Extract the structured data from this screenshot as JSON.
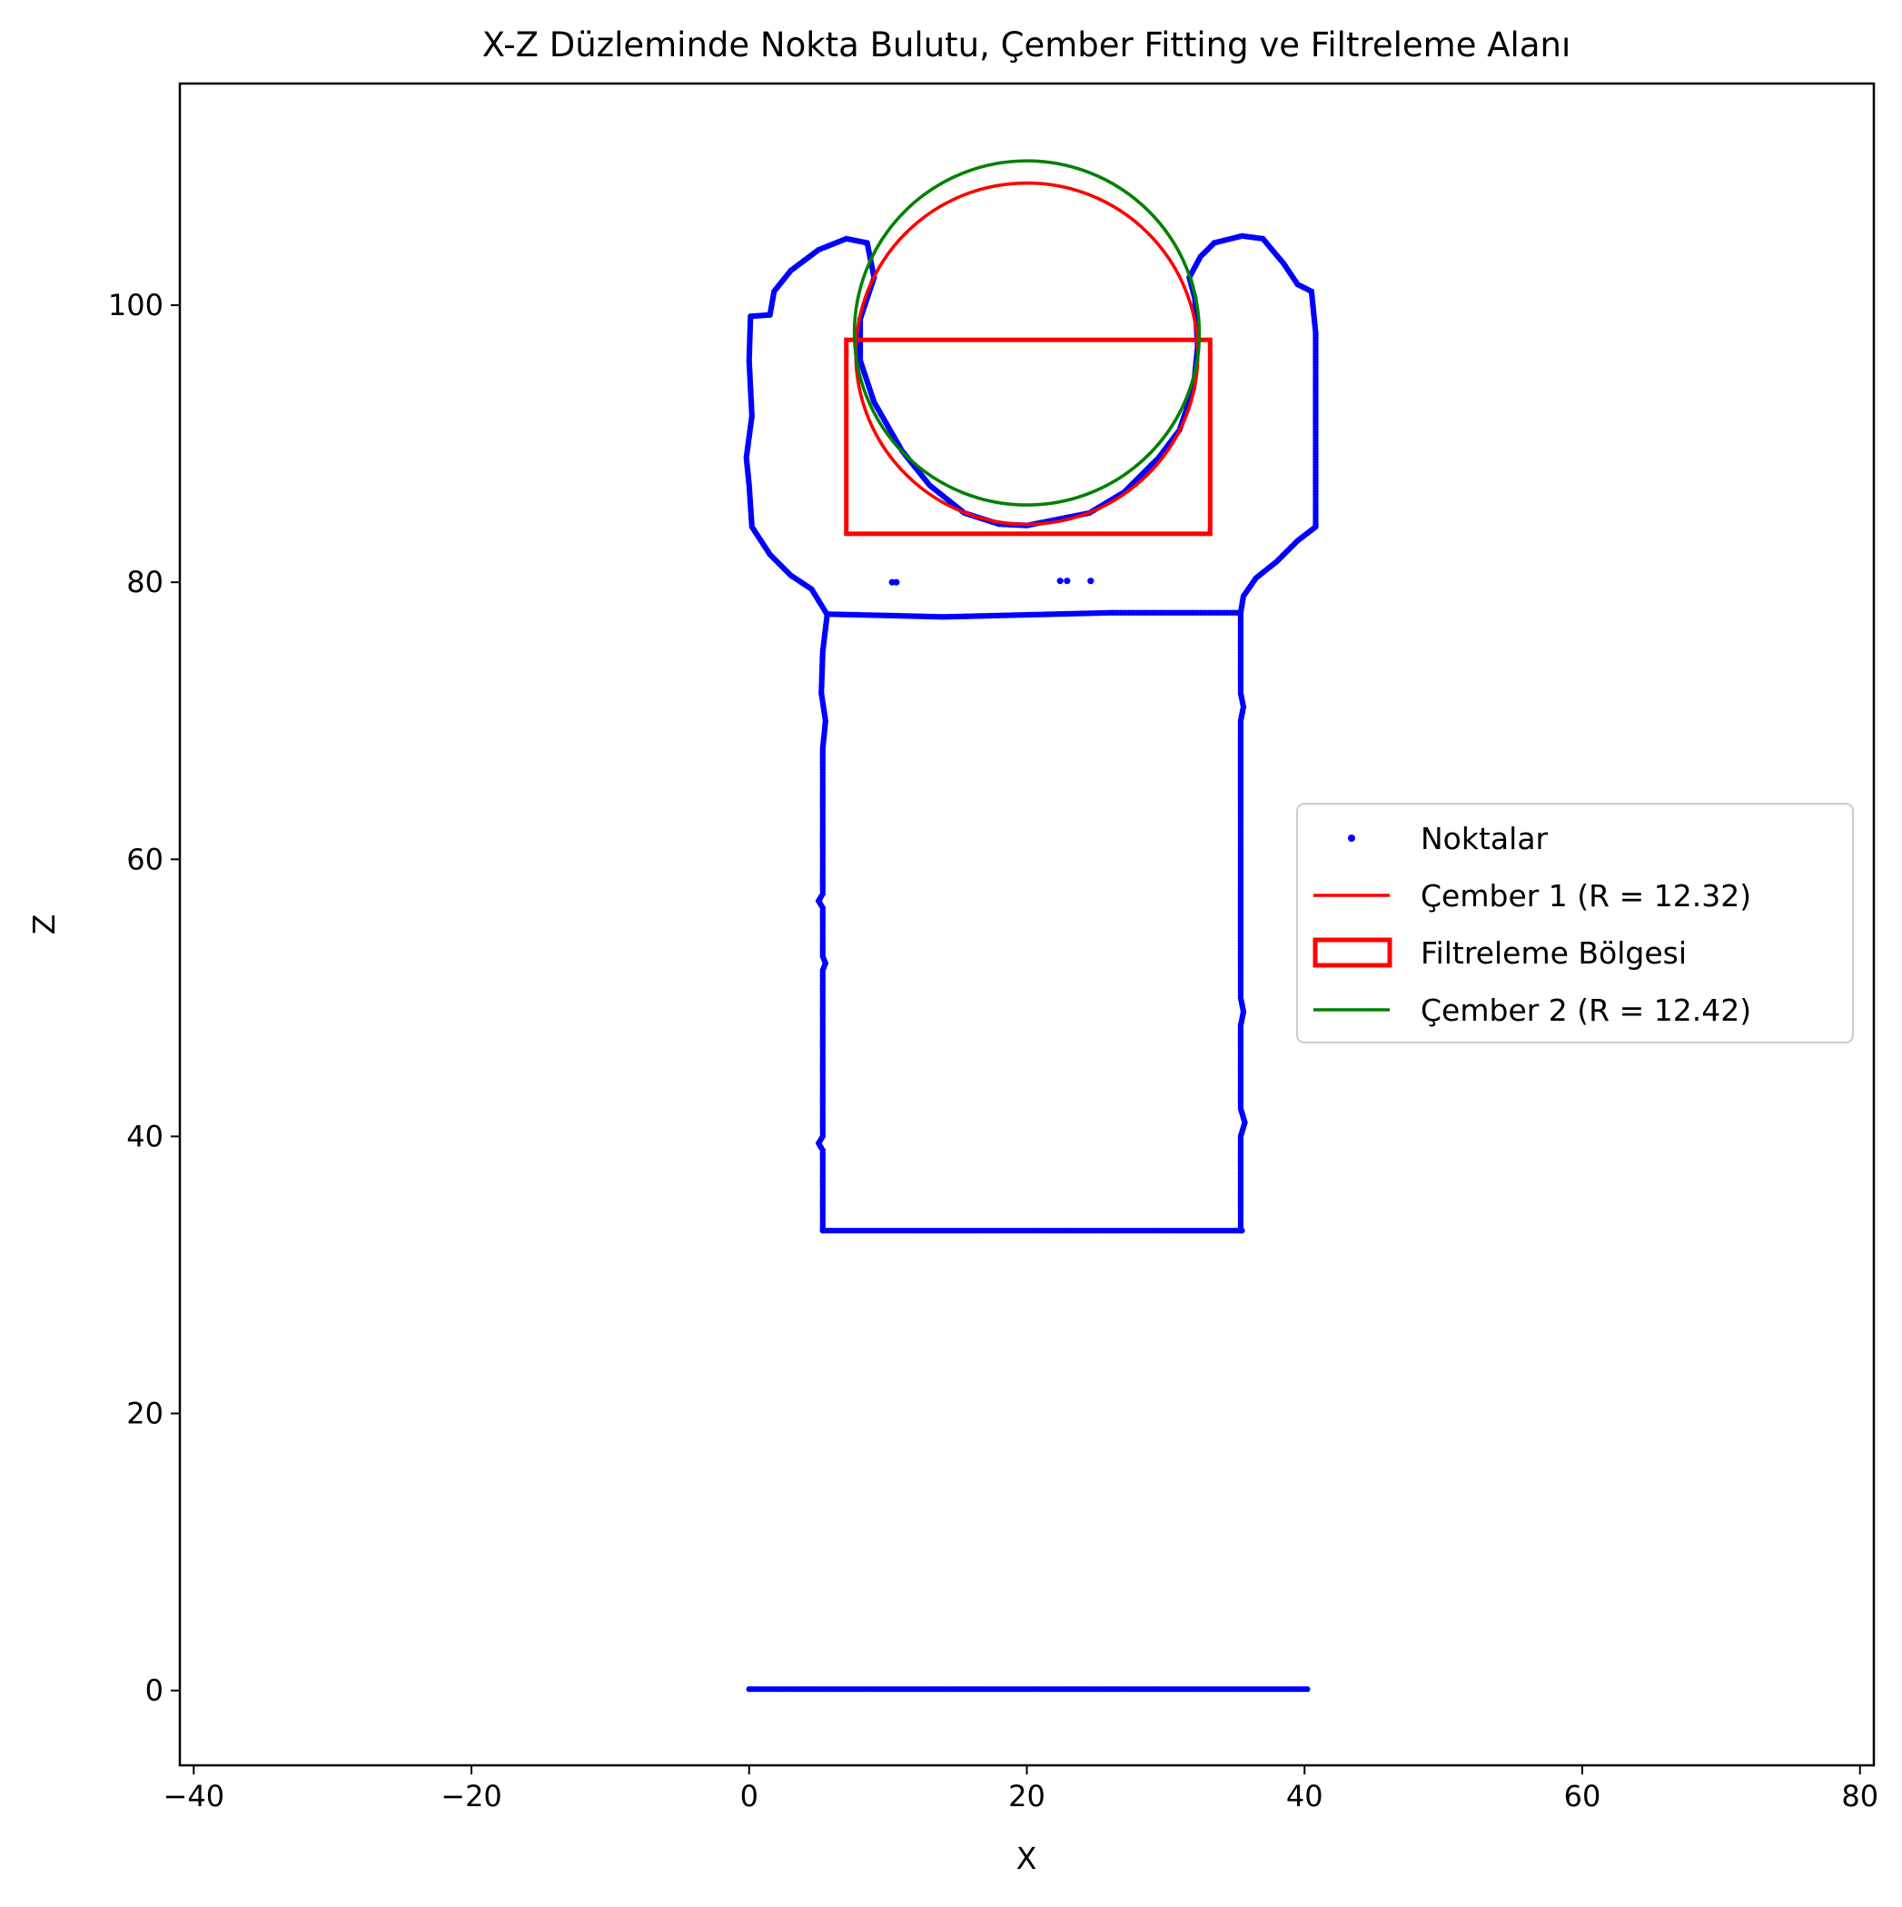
{
  "chart_data": {
    "type": "scatter",
    "title": "X-Z Düzleminde Nokta Bulutu, Çember Fitting ve Filtreleme Alanı",
    "xlabel": "X",
    "ylabel": "Z",
    "xlim": [
      -41,
      81
    ],
    "ylim": [
      -5.4,
      116
    ],
    "xticks": [
      -40,
      -20,
      0,
      20,
      40,
      60,
      80
    ],
    "yticks": [
      0,
      20,
      40,
      60,
      80,
      100
    ],
    "xtick_labels": [
      "−40",
      "−20",
      "0",
      "20",
      "40",
      "60",
      "80"
    ],
    "ytick_labels": [
      "0",
      "20",
      "40",
      "60",
      "80",
      "100"
    ],
    "grid": false,
    "legend_position": "center-right",
    "legend": [
      {
        "label": "Noktalar",
        "kind": "marker",
        "color": "#0000ff"
      },
      {
        "label": "Çember 1 (R = 12.32)",
        "kind": "line",
        "color": "#ff0000"
      },
      {
        "label": "Filtreleme Bölgesi",
        "kind": "patch",
        "color": "#ff0000"
      },
      {
        "label": "Çember 2 (R = 12.42)",
        "kind": "line",
        "color": "#008000"
      }
    ],
    "series": [
      {
        "name": "Noktalar",
        "kind": "points",
        "color": "#0000ff",
        "polylines": [
          [
            [
              0,
              0.1
            ],
            [
              10,
              0.1
            ],
            [
              20,
              0.1
            ],
            [
              30,
              0.1
            ],
            [
              40.2,
              0.1
            ]
          ],
          [
            [
              5.3,
              33.2
            ],
            [
              35.5,
              33.2
            ]
          ],
          [
            [
              5.3,
              33.2
            ],
            [
              5.3,
              39
            ],
            [
              5.0,
              39.5
            ],
            [
              5.3,
              40
            ],
            [
              5.3,
              52
            ],
            [
              5.5,
              52.5
            ],
            [
              5.3,
              53
            ],
            [
              5.3,
              56.5
            ],
            [
              5.0,
              57
            ],
            [
              5.3,
              57.5
            ],
            [
              5.3,
              68
            ],
            [
              5.5,
              70
            ],
            [
              5.2,
              72
            ],
            [
              5.3,
              75
            ],
            [
              5.6,
              77.5
            ]
          ],
          [
            [
              35.4,
              33.2
            ],
            [
              35.4,
              40
            ],
            [
              35.7,
              41
            ],
            [
              35.4,
              42
            ],
            [
              35.4,
              48
            ],
            [
              35.6,
              49
            ],
            [
              35.4,
              50
            ],
            [
              35.4,
              70
            ],
            [
              35.6,
              71
            ],
            [
              35.4,
              72
            ],
            [
              35.4,
              77.8
            ]
          ],
          [
            [
              5.6,
              77.7
            ],
            [
              10,
              77.6
            ],
            [
              14,
              77.5
            ],
            [
              18,
              77.6
            ],
            [
              22,
              77.7
            ],
            [
              26,
              77.8
            ],
            [
              30,
              77.8
            ],
            [
              35.4,
              77.8
            ]
          ],
          [
            [
              5.6,
              77.7
            ],
            [
              4.5,
              79.5
            ],
            [
              3.0,
              80.5
            ],
            [
              1.5,
              82
            ],
            [
              0.2,
              84
            ],
            [
              0.0,
              87
            ],
            [
              -0.2,
              89
            ],
            [
              0.2,
              92
            ],
            [
              0.0,
              96
            ],
            [
              0.1,
              99.2
            ],
            [
              1.5,
              99.3
            ],
            [
              1.8,
              101
            ],
            [
              3.0,
              102.5
            ],
            [
              5,
              104
            ],
            [
              7,
              104.8
            ],
            [
              8.5,
              104.5
            ],
            [
              9.0,
              102
            ],
            [
              8.0,
              99
            ],
            [
              8.0,
              96
            ],
            [
              9.0,
              93
            ],
            [
              11,
              89.5
            ],
            [
              13,
              87
            ],
            [
              15.5,
              85
            ],
            [
              18,
              84.2
            ],
            [
              20,
              84.1
            ],
            [
              22,
              84.5
            ],
            [
              24.5,
              85
            ],
            [
              27,
              86.5
            ],
            [
              29.5,
              89
            ],
            [
              31,
              91
            ],
            [
              32,
              94
            ],
            [
              32.3,
              97
            ],
            [
              32.1,
              100.5
            ],
            [
              31.7,
              102
            ],
            [
              32.5,
              103.5
            ],
            [
              33.5,
              104.5
            ],
            [
              35.5,
              105
            ],
            [
              37,
              104.8
            ],
            [
              38.5,
              103
            ],
            [
              39.5,
              101.5
            ],
            [
              40.5,
              101
            ],
            [
              40.8,
              98
            ],
            [
              40.8,
              92
            ],
            [
              40.8,
              84
            ],
            [
              39.5,
              83
            ],
            [
              38,
              81.5
            ],
            [
              36.5,
              80.3
            ],
            [
              35.6,
              79
            ],
            [
              35.4,
              77.8
            ]
          ]
        ],
        "isolated_points": [
          [
            10.3,
            80
          ],
          [
            10.6,
            80
          ],
          [
            22.4,
            80.1
          ],
          [
            22.9,
            80.1
          ],
          [
            24.6,
            80.1
          ]
        ]
      },
      {
        "name": "Çember 1 (R = 12.32)",
        "kind": "circle",
        "color": "#ff0000",
        "center": [
          20.0,
          96.5
        ],
        "radius": 12.32
      },
      {
        "name": "Filtreleme Bölgesi",
        "kind": "rectangle",
        "color": "#ff0000",
        "x0": 7.0,
        "x1": 33.2,
        "z0": 83.5,
        "z1": 97.5
      },
      {
        "name": "Çember 2 (R = 12.42)",
        "kind": "circle",
        "color": "#008000",
        "center": [
          20.0,
          98.0
        ],
        "radius": 12.42
      }
    ]
  }
}
